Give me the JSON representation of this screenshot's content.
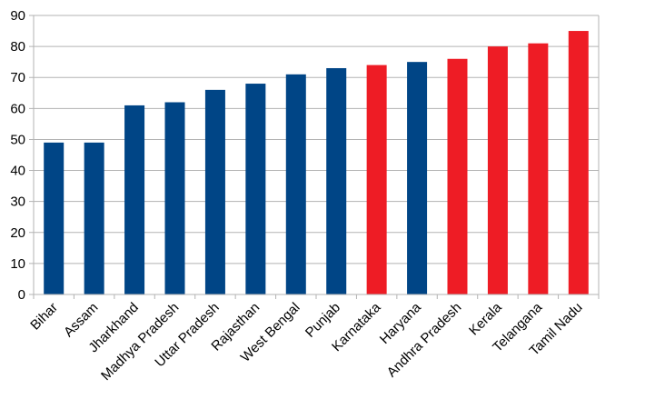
{
  "chart_data": {
    "type": "bar",
    "title": "",
    "xlabel": "",
    "ylabel": "",
    "ylim": [
      0,
      90
    ],
    "yticks": [
      0,
      10,
      20,
      30,
      40,
      50,
      60,
      70,
      80,
      90
    ],
    "grid": true,
    "categories": [
      "Bihar",
      "Assam",
      "Jharkhand",
      "Madhya Pradesh",
      "Uttar Pradesh",
      "Rajasthan",
      "West Bengal",
      "Punjab",
      "Karnataka",
      "Haryana",
      "Andhra Pradesh",
      "Kerala",
      "Telangana",
      "Tamil Nadu"
    ],
    "values": [
      49,
      49,
      61,
      62,
      66,
      68,
      71,
      73,
      74,
      75,
      76,
      80,
      81,
      85
    ],
    "bar_colors": [
      "#004586",
      "#004586",
      "#004586",
      "#004586",
      "#004586",
      "#004586",
      "#004586",
      "#004586",
      "#ee1c25",
      "#004586",
      "#ee1c25",
      "#ee1c25",
      "#ee1c25",
      "#ee1c25"
    ],
    "colors": {
      "blue": "#004586",
      "red": "#ee1c25",
      "grid": "#b3b3b3"
    }
  }
}
